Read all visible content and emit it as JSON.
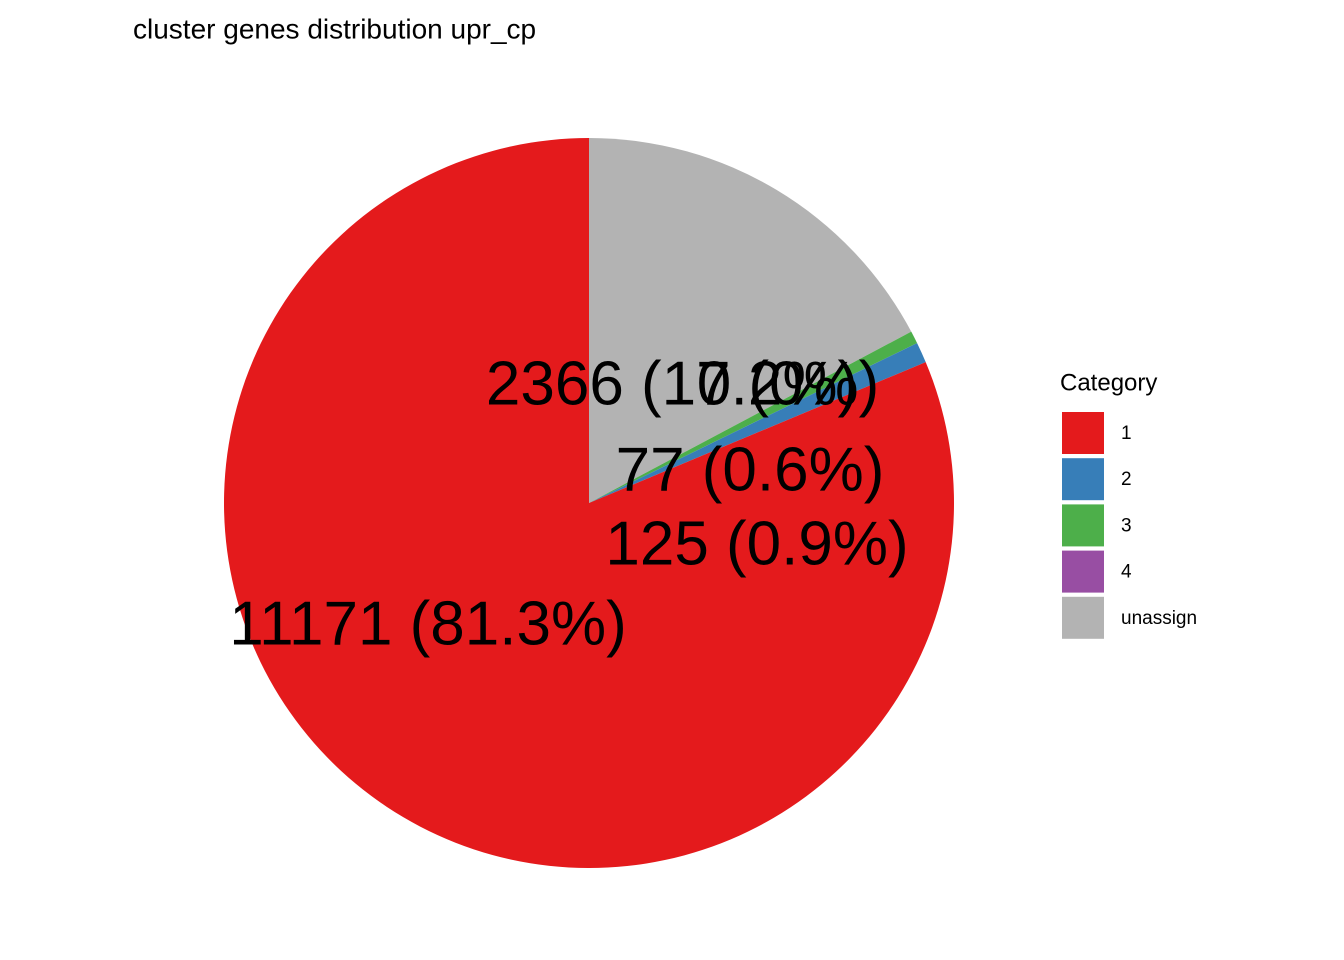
{
  "chart_data": {
    "type": "pie",
    "title": "cluster genes distribution upr_cp",
    "legend_title": "Category",
    "legend": "right",
    "categories": [
      "1",
      "2",
      "3",
      "4",
      "unassign"
    ],
    "values": [
      11171,
      125,
      77,
      0,
      2366
    ],
    "value_labels": [
      "11171 (81.3%)",
      "125 (0.9%)",
      "77 (0.6%)",
      "0 (0%)",
      "2366 (17.2%)"
    ],
    "colors": [
      "#e41a1c",
      "#377eb8",
      "#4daf4a",
      "#984ea3",
      "#b3b3b3"
    ]
  }
}
